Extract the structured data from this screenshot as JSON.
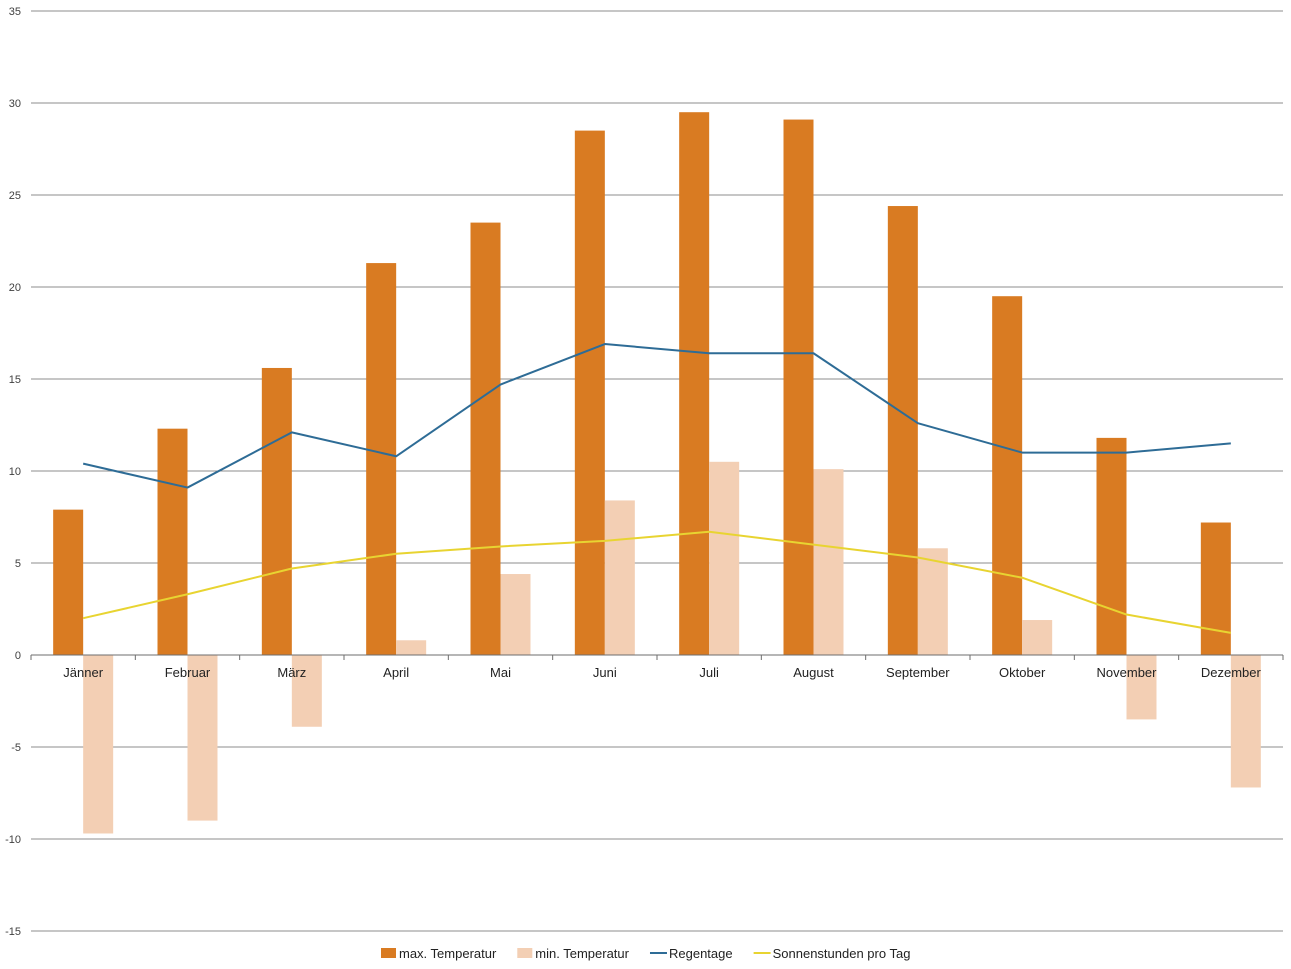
{
  "chart_data": {
    "type": "bar",
    "categories": [
      "Jänner",
      "Februar",
      "März",
      "April",
      "Mai",
      "Juni",
      "Juli",
      "August",
      "September",
      "Oktober",
      "November",
      "Dezember"
    ],
    "ylim": [
      -15,
      35
    ],
    "yticks": [
      -15,
      -10,
      -5,
      0,
      5,
      10,
      15,
      20,
      25,
      30,
      35
    ],
    "grid": true,
    "legend_position": "bottom",
    "series": [
      {
        "name": "max. Temperatur",
        "kind": "bar",
        "color": "#d97b22",
        "values": [
          7.9,
          12.3,
          15.6,
          21.3,
          23.5,
          28.5,
          29.5,
          29.1,
          24.4,
          19.5,
          11.8,
          7.2
        ]
      },
      {
        "name": "min. Temperatur",
        "kind": "bar",
        "color": "#f3cfb4",
        "values": [
          -9.7,
          -9.0,
          -3.9,
          0.8,
          4.4,
          8.4,
          10.5,
          10.1,
          5.8,
          1.9,
          -3.5,
          -7.2
        ]
      },
      {
        "name": "Regentage",
        "kind": "line",
        "color": "#2e6c96",
        "values": [
          10.4,
          9.1,
          12.1,
          10.8,
          14.7,
          16.9,
          16.4,
          16.4,
          12.6,
          11.0,
          11.0,
          11.5
        ]
      },
      {
        "name": "Sonnenstunden pro Tag",
        "kind": "line",
        "color": "#e8d431",
        "values": [
          2.0,
          3.3,
          4.7,
          5.5,
          5.9,
          6.2,
          6.7,
          6.0,
          5.3,
          4.2,
          2.2,
          1.2
        ]
      }
    ]
  }
}
